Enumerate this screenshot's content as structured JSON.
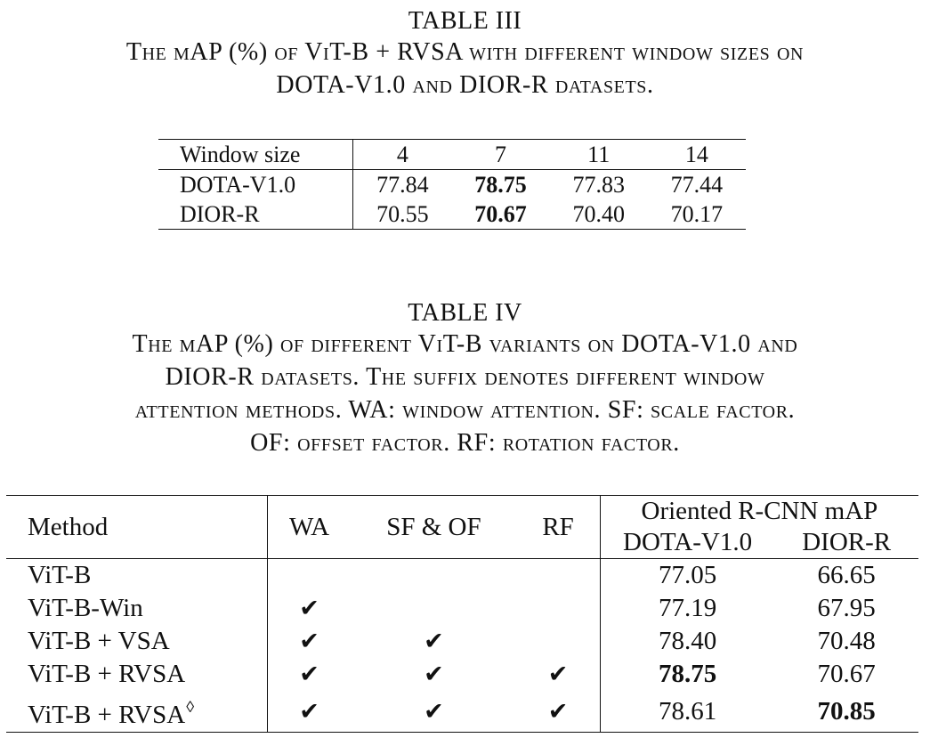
{
  "table3": {
    "label": "TABLE III",
    "caption_lines": [
      "The mAP (%) of ViT-B + RVSA with different window sizes on",
      "DOTA-V1.0 and DIOR-R datasets."
    ],
    "header": [
      "Window size",
      "4",
      "7",
      "11",
      "14"
    ],
    "rows": [
      [
        "DOTA-V1.0",
        "77.84",
        "78.75",
        "77.83",
        "77.44"
      ],
      [
        "DIOR-R",
        "70.55",
        "70.67",
        "70.40",
        "70.17"
      ]
    ]
  },
  "table4": {
    "label": "TABLE IV",
    "caption_lines": [
      "The mAP (%) of different ViT-B variants on DOTA-V1.0 and",
      "DIOR-R datasets. The suffix denotes different window",
      "attention methods. WA: window attention. SF: scale factor.",
      "OF: offset factor. RF: rotation factor."
    ],
    "header": {
      "method": "Method",
      "wa": "WA",
      "sf_of": "SF & OF",
      "rf": "RF",
      "group": "Oriented R-CNN mAP",
      "dota": "DOTA-V1.0",
      "dior": "DIOR-R"
    },
    "check_symbol": "✔",
    "superscript_symbol": "◊",
    "rows": [
      {
        "method": "ViT-B",
        "wa": "",
        "sf_of": "",
        "rf": "",
        "dota": "77.05",
        "dior": "66.65"
      },
      {
        "method": "ViT-B-Win",
        "wa": "✔",
        "sf_of": "",
        "rf": "",
        "dota": "77.19",
        "dior": "67.95"
      },
      {
        "method": "ViT-B + VSA",
        "wa": "✔",
        "sf_of": "✔",
        "rf": "",
        "dota": "78.40",
        "dior": "70.48"
      },
      {
        "method": "ViT-B + RVSA",
        "wa": "✔",
        "sf_of": "✔",
        "rf": "✔",
        "dota": "78.75",
        "dior": "70.67"
      },
      {
        "method": "ViT-B + RVSA",
        "wa": "✔",
        "sf_of": "✔",
        "rf": "✔",
        "dota": "78.61",
        "dior": "70.85"
      }
    ]
  }
}
